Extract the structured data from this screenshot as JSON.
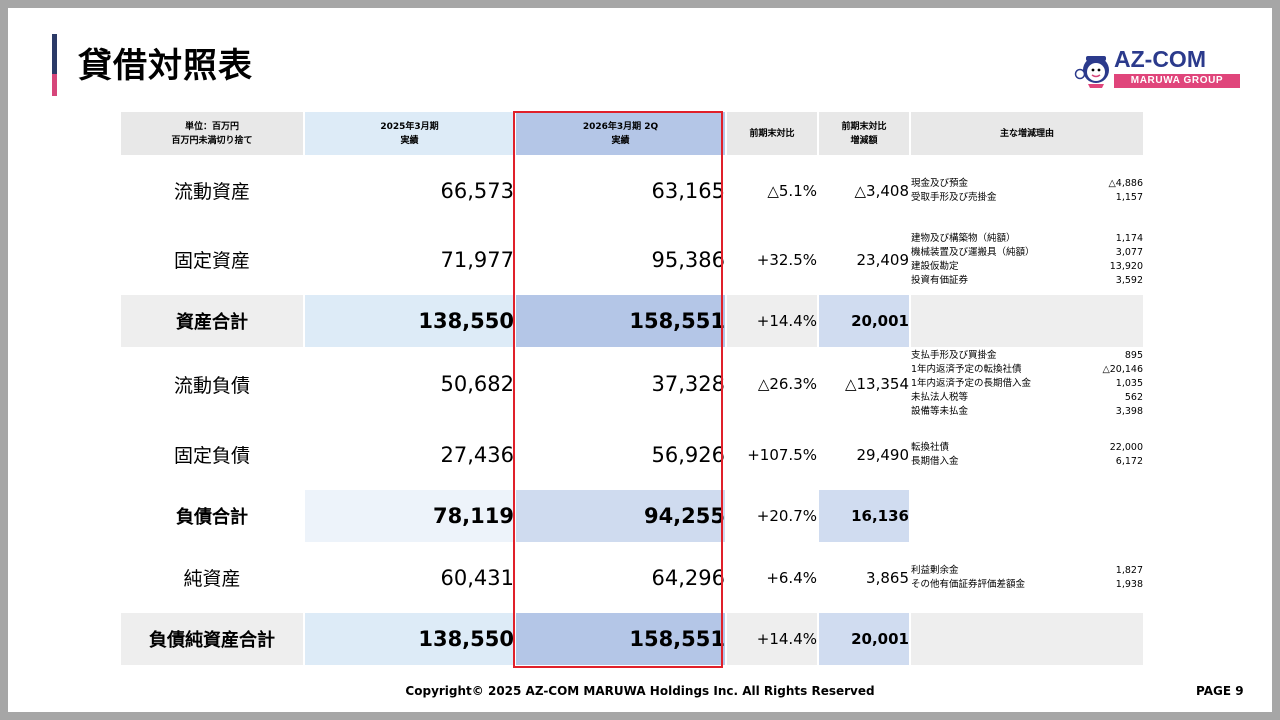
{
  "title": "貸借対照表",
  "logo": {
    "main": "AZ-COM",
    "sub": "MARUWA GROUP",
    "icon": "mascot-icon"
  },
  "table": {
    "unit_line1": "単位：百万円",
    "unit_line2": "百万円未満切り捨て",
    "headers": {
      "prev_line1": "2025年3月期",
      "prev_line2": "実績",
      "cur_line1": "2026年3月期 2Q",
      "cur_line2": "実績",
      "ratio": "前期末対比",
      "diff_line1": "前期末対比",
      "diff_line2": "増減額",
      "reason": "主な増減理由"
    },
    "rows": [
      {
        "label": "流動資産",
        "prev": "66,573",
        "cur": "63,165",
        "ratio": "△5.1%",
        "diff": "△3,408",
        "reasons": [
          {
            "item": "現金及び預金",
            "value": "△4,886"
          },
          {
            "item": "受取手形及び売掛金",
            "value": "1,157"
          }
        ]
      },
      {
        "label": "固定資産",
        "prev": "71,977",
        "cur": "95,386",
        "ratio": "+32.5%",
        "diff": "23,409",
        "reasons": [
          {
            "item": "建物及び構築物（純額）",
            "value": "1,174"
          },
          {
            "item": "機械装置及び運搬具（純額）",
            "value": "3,077"
          },
          {
            "item": "建設仮勘定",
            "value": "13,920"
          },
          {
            "item": "投資有価証券",
            "value": "3,592"
          }
        ]
      },
      {
        "label": "資産合計",
        "prev": "138,550",
        "cur": "158,551",
        "ratio": "+14.4%",
        "diff": "20,001",
        "reasons": []
      },
      {
        "label": "流動負債",
        "prev": "50,682",
        "cur": "37,328",
        "ratio": "△26.3%",
        "diff": "△13,354",
        "reasons": [
          {
            "item": "支払手形及び買掛金",
            "value": "895"
          },
          {
            "item": "1年内返済予定の転換社債",
            "value": "△20,146"
          },
          {
            "item": "1年内返済予定の長期借入金",
            "value": "1,035"
          },
          {
            "item": "未払法人税等",
            "value": "562"
          },
          {
            "item": "設備等未払金",
            "value": "3,398"
          }
        ]
      },
      {
        "label": "固定負債",
        "prev": "27,436",
        "cur": "56,926",
        "ratio": "+107.5%",
        "diff": "29,490",
        "reasons": [
          {
            "item": "転換社債",
            "value": "22,000"
          },
          {
            "item": "長期借入金",
            "value": "6,172"
          }
        ]
      },
      {
        "label": "負債合計",
        "prev": "78,119",
        "cur": "94,255",
        "ratio": "+20.7%",
        "diff": "16,136",
        "reasons": []
      },
      {
        "label": "純資産",
        "prev": "60,431",
        "cur": "64,296",
        "ratio": "+6.4%",
        "diff": "3,865",
        "reasons": [
          {
            "item": "利益剰余金",
            "value": "1,827"
          },
          {
            "item": "その他有価証券評価差額金",
            "value": "1,938"
          }
        ]
      },
      {
        "label": "負債純資産合計",
        "prev": "138,550",
        "cur": "158,551",
        "ratio": "+14.4%",
        "diff": "20,001",
        "reasons": []
      }
    ]
  },
  "footer": "Copyright© 2025 AZ-COM MARUWA Holdings Inc. All Rights Reserved",
  "page_number": "PAGE 9"
}
